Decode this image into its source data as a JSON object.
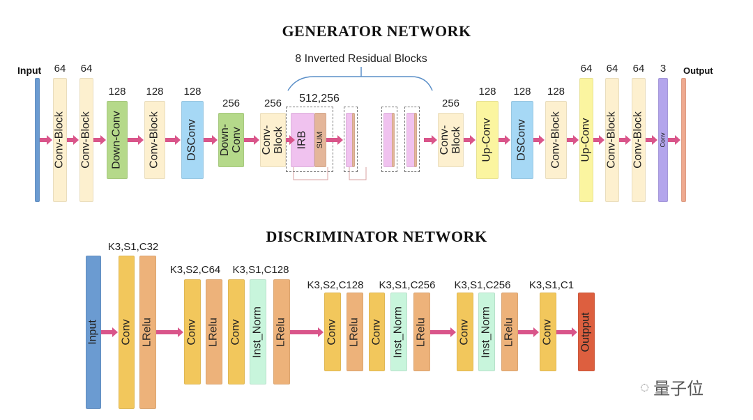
{
  "generator": {
    "title": "GENERATOR NETWORK",
    "input_label": "Input",
    "output_label": "Output",
    "residual_label": "8 Inverted Residual Blocks",
    "irb_channels": "512,256",
    "irb_label": "IRB",
    "sum_label": "SUM",
    "blocks": [
      {
        "label": "Conv-Block",
        "channels": "64"
      },
      {
        "label": "Conv-Block",
        "channels": "64"
      },
      {
        "label": "Down-Conv",
        "channels": "128"
      },
      {
        "label": "Conv-Block",
        "channels": "128"
      },
      {
        "label": "DSConv",
        "channels": "128"
      },
      {
        "label": "Down-\nConv",
        "channels": "256"
      },
      {
        "label": "Conv-\nBlock",
        "channels": "256"
      },
      {
        "label": "Conv-\nBlock",
        "channels": "256"
      },
      {
        "label": "Up-Conv",
        "channels": "128"
      },
      {
        "label": "DSConv",
        "channels": "128"
      },
      {
        "label": "Conv-Block",
        "channels": "128"
      },
      {
        "label": "Up-Conv",
        "channels": "64"
      },
      {
        "label": "Conv-Block",
        "channels": "64"
      },
      {
        "label": "Conv-Block",
        "channels": "64"
      },
      {
        "label": "Conv",
        "channels": "3"
      }
    ]
  },
  "discriminator": {
    "title": "DISCRIMINATOR NETWORK",
    "layer_specs": [
      "K3,S1,C32",
      "K3,S2,C64",
      "K3,S1,C128",
      "K3,S2,C128",
      "K3,S1,C256",
      "K3,S1,C256",
      "K3,S1,C1"
    ],
    "blocks": [
      "Input",
      "Conv",
      "LRelu",
      "Conv",
      "LRelu",
      "Conv",
      "Inst_Norm",
      "LRelu",
      "Conv",
      "LRelu",
      "Conv",
      "Inst_Norm",
      "LRelu",
      "Conv",
      "Inst_Norm",
      "LRelu",
      "Conv",
      "Outpput"
    ]
  },
  "watermark": "量子位",
  "colors": {
    "input": "#6b9bd1",
    "conv_block": "#fdf0cf",
    "down_conv": "#b5d98a",
    "ds_conv": "#a6d8f5",
    "up_conv": "#fbf5a0",
    "irb": "#f0c2ef",
    "sum": "#e4b69a",
    "final_conv": "#b3a5ec",
    "output": "#efaa90",
    "d_conv": "#f2c75c",
    "d_lrelu": "#edb27a",
    "d_norm": "#c8f5dc",
    "d_output": "#dd5f3f",
    "arrow": "#d9558a"
  }
}
